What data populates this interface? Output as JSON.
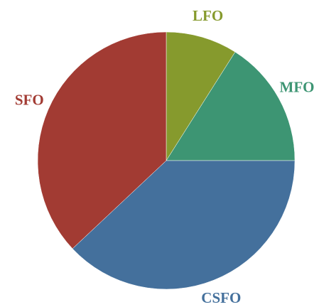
{
  "chart_data": {
    "type": "pie",
    "categories": [
      "LFO",
      "MFO",
      "CSFO",
      "SFO"
    ],
    "values": [
      9,
      16,
      38,
      37
    ],
    "colors": [
      "#869a2d",
      "#3d9573",
      "#44709c",
      "#a23b33"
    ]
  }
}
